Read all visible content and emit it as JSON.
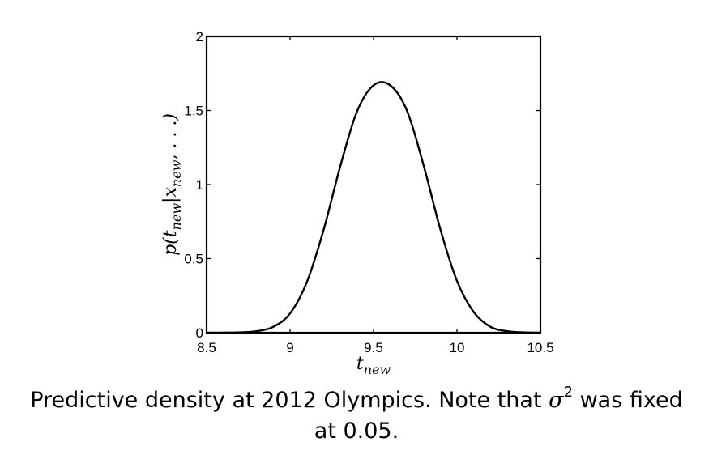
{
  "chart_data": {
    "type": "line",
    "title": "",
    "xlabel": {
      "base": "t",
      "sub": "new"
    },
    "ylabel": {
      "prefix": "p(",
      "t": "t",
      "t_sub": "new",
      "bar": "|",
      "x": "x",
      "x_sub": "new",
      "suffix": ", . . .)"
    },
    "xlim": [
      8.5,
      10.5
    ],
    "ylim": [
      0,
      2
    ],
    "xticks": [
      8.5,
      9,
      9.5,
      10,
      10.5
    ],
    "xtick_labels": [
      "8.5",
      "9",
      "9.5",
      "10",
      "10.5"
    ],
    "yticks": [
      0,
      0.5,
      1,
      1.5,
      2
    ],
    "ytick_labels": [
      "0",
      "0.5",
      "1",
      "1.5",
      "2"
    ],
    "grid": false,
    "series": [
      {
        "color": "#000000",
        "x": [
          8.5,
          8.6,
          8.7,
          8.8,
          8.9,
          9.0,
          9.1,
          9.2,
          9.3,
          9.4,
          9.5,
          9.6,
          9.7,
          9.8,
          9.9,
          10.0,
          10.1,
          10.2,
          10.3,
          10.4,
          10.5
        ],
        "y": [
          0.0,
          0.0,
          0.002,
          0.01,
          0.04,
          0.13,
          0.34,
          0.69,
          1.12,
          1.49,
          1.67,
          1.67,
          1.5,
          1.13,
          0.7,
          0.35,
          0.14,
          0.04,
          0.01,
          0.002,
          0.0
        ]
      }
    ]
  },
  "caption": {
    "before": "Predictive density at 2012 Olympics. Note that ",
    "sigma": "σ",
    "sup": "2",
    "after": " was fixed at 0.05."
  }
}
